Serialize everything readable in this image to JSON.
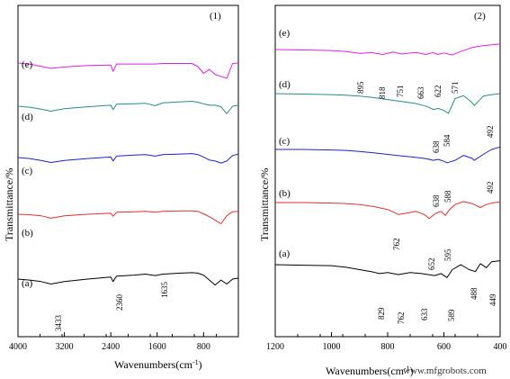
{
  "chart_data": [
    {
      "type": "line",
      "panel_label": "(1)",
      "xlabel": "Wavenumbers(cm-1)",
      "ylabel": "Transmittance/%",
      "x_reversed": true,
      "xlim": [
        4000,
        200
      ],
      "xticks": [
        "4000",
        "3200",
        "2400",
        "1600",
        "800"
      ],
      "grid": false,
      "series": [
        {
          "name": "(e)",
          "color": "#e020e0",
          "x": [
            4000,
            3800,
            3600,
            3433,
            3200,
            2800,
            2400,
            2360,
            2300,
            2000,
            1800,
            1635,
            1500,
            1200,
            1000,
            900,
            800,
            700,
            600,
            500,
            400,
            300,
            200
          ],
          "y": [
            -3,
            -5,
            -10,
            -14,
            -11,
            -8,
            -7,
            -20,
            -5,
            -5,
            -5,
            -5,
            -4,
            -4,
            -4,
            -10,
            -24,
            -16,
            -26,
            -30,
            -34,
            -4,
            -3
          ]
        },
        {
          "name": "(d)",
          "color": "#2a8a8a",
          "x": [
            4000,
            3800,
            3600,
            3433,
            3200,
            2800,
            2400,
            2360,
            2300,
            2000,
            1800,
            1635,
            1500,
            1200,
            1000,
            900,
            800,
            700,
            600,
            500,
            400,
            300,
            200
          ],
          "y": [
            -35,
            -37,
            -41,
            -45,
            -40,
            -36,
            -33,
            -42,
            -31,
            -30,
            -29,
            -34,
            -28,
            -26,
            -25,
            -27,
            -30,
            -33,
            -33,
            -36,
            -50,
            -35,
            -33
          ]
        },
        {
          "name": "(c)",
          "color": "#2020c8",
          "x": [
            4000,
            3800,
            3600,
            3433,
            3200,
            2800,
            2400,
            2360,
            2300,
            2000,
            1800,
            1635,
            1500,
            1200,
            1000,
            900,
            800,
            700,
            600,
            500,
            400,
            300,
            200
          ],
          "y": [
            -54,
            -56,
            -60,
            -64,
            -60,
            -56,
            -53,
            -61,
            -51,
            -49,
            -48,
            -51,
            -48,
            -47,
            -46,
            -48,
            -53,
            -59,
            -61,
            -65,
            -61,
            -50,
            -47
          ]
        },
        {
          "name": "(b)",
          "color": "#e03030",
          "x": [
            4000,
            3800,
            3600,
            3433,
            3200,
            2800,
            2400,
            2360,
            2300,
            2000,
            1800,
            1635,
            1500,
            1200,
            1000,
            900,
            800,
            700,
            600,
            500,
            400,
            300,
            200
          ],
          "y": [
            -78,
            -79,
            -81,
            -86,
            -81,
            -78,
            -76,
            -82,
            -74,
            -73,
            -72,
            -74,
            -72,
            -71,
            -71,
            -72,
            -77,
            -83,
            -90,
            -97,
            -81,
            -73,
            -72
          ]
        },
        {
          "name": "(a)",
          "color": "#000000",
          "x": [
            4000,
            3800,
            3600,
            3433,
            3200,
            2800,
            2400,
            2360,
            2300,
            2000,
            1800,
            1635,
            1500,
            1200,
            1000,
            900,
            800,
            700,
            600,
            500,
            400,
            300,
            200
          ],
          "y": [
            -110,
            -112,
            -115,
            -120,
            -115,
            -110,
            -106,
            -115,
            -104,
            -102,
            -100,
            -103,
            -100,
            -98,
            -97,
            -98,
            -102,
            -112,
            -122,
            -112,
            -120,
            -110,
            -108
          ]
        }
      ],
      "annotations": [
        "3433",
        "2360",
        "1635"
      ]
    },
    {
      "type": "line",
      "panel_label": "(2)",
      "xlabel": "Wavenumbers(cm-1)",
      "ylabel": "Transmittance/%",
      "x_reversed": true,
      "xlim": [
        1200,
        400
      ],
      "xticks": [
        "1200",
        "1000",
        "800",
        "600",
        "400"
      ],
      "grid": false,
      "series": [
        {
          "name": "(e)",
          "color": "#e020e0",
          "x": [
            1200,
            1100,
            1000,
            950,
            895,
            860,
            818,
            780,
            751,
            700,
            663,
            640,
            622,
            600,
            571,
            540,
            500,
            460,
            420,
            400
          ],
          "y": [
            -14,
            -15,
            -16,
            -18,
            -22,
            -20,
            -24,
            -19,
            -23,
            -20,
            -24,
            -20,
            -24,
            -21,
            -25,
            -18,
            -10,
            -6,
            -4,
            -3
          ]
        },
        {
          "name": "(d)",
          "color": "#2a8a8a",
          "x": [
            1200,
            1100,
            1000,
            950,
            900,
            850,
            800,
            750,
            700,
            660,
            638,
            620,
            600,
            584,
            560,
            530,
            500,
            492,
            460,
            430,
            400
          ],
          "y": [
            -40,
            -41,
            -42,
            -43,
            -45,
            -48,
            -52,
            -56,
            -60,
            -66,
            -72,
            -70,
            -74,
            -80,
            -50,
            -44,
            -58,
            -64,
            -45,
            -42,
            -40
          ]
        },
        {
          "name": "(c)",
          "color": "#2020c8",
          "x": [
            1200,
            1100,
            1000,
            950,
            900,
            850,
            800,
            750,
            700,
            660,
            638,
            620,
            600,
            588,
            560,
            530,
            500,
            492,
            460,
            430,
            400
          ],
          "y": [
            -70,
            -70,
            -71,
            -72,
            -74,
            -77,
            -80,
            -83,
            -86,
            -89,
            -92,
            -90,
            -94,
            -97,
            -92,
            -82,
            -88,
            -92,
            -80,
            -70,
            -65
          ]
        },
        {
          "name": "(b)",
          "color": "#e03030",
          "x": [
            1200,
            1100,
            1000,
            950,
            900,
            850,
            800,
            762,
            740,
            700,
            670,
            652,
            630,
            610,
            595,
            580,
            560,
            530,
            500,
            470,
            449,
            420,
            400
          ],
          "y": [
            -106,
            -106,
            -107,
            -108,
            -110,
            -114,
            -120,
            -130,
            -128,
            -124,
            -130,
            -138,
            -128,
            -124,
            -132,
            -120,
            -110,
            -104,
            -108,
            -116,
            -110,
            -106,
            -105
          ]
        },
        {
          "name": "(a)",
          "color": "#000000",
          "x": [
            1200,
            1100,
            1000,
            950,
            900,
            850,
            829,
            800,
            762,
            720,
            680,
            633,
            610,
            589,
            570,
            540,
            510,
            488,
            470,
            449,
            430,
            400
          ],
          "y": [
            -150,
            -151,
            -152,
            -155,
            -160,
            -165,
            -168,
            -166,
            -170,
            -166,
            -168,
            -172,
            -168,
            -176,
            -160,
            -150,
            -160,
            -164,
            -148,
            -156,
            -144,
            -142
          ]
        }
      ],
      "annotations": [
        "895",
        "818",
        "751",
        "663",
        "622",
        "571",
        "638",
        "584",
        "492",
        "638",
        "588",
        "492",
        "762",
        "652",
        "595",
        "829",
        "762",
        "633",
        "589",
        "488",
        "449"
      ]
    }
  ],
  "watermark": "www.mfgrobots.com"
}
